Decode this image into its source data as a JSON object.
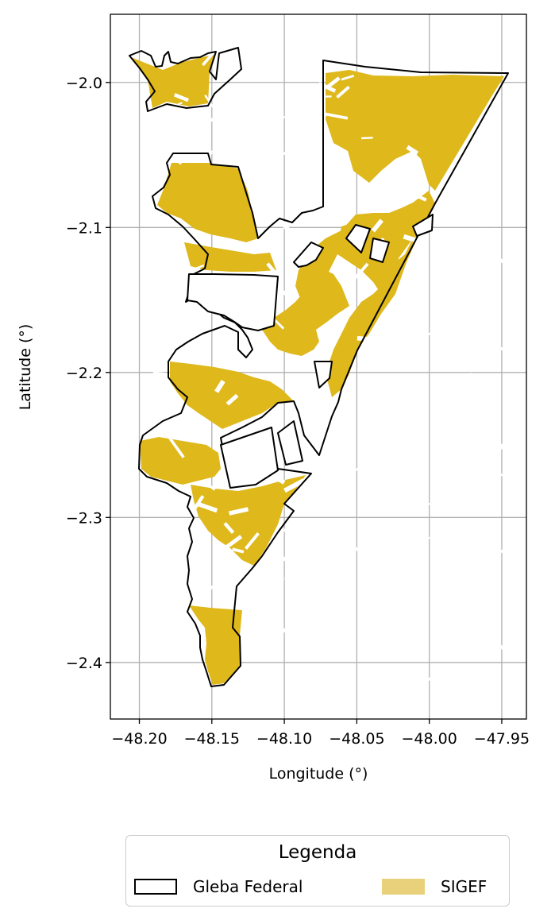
{
  "axes": {
    "xlabel": "Longitude (°)",
    "ylabel": "Latitude (°)",
    "xlim": [
      -48.22,
      -47.933
    ],
    "ylim": [
      -2.439,
      -1.953
    ],
    "xticks": [
      "−48.20",
      "−48.15",
      "−48.10",
      "−48.05",
      "−48.00",
      "−47.95"
    ],
    "xtick_values": [
      -48.2,
      -48.15,
      -48.1,
      -48.05,
      -48.0,
      -47.95
    ],
    "yticks": [
      "−2.0",
      "−2.1",
      "−2.2",
      "−2.3",
      "−2.4"
    ],
    "ytick_values": [
      -2.0,
      -2.1,
      -2.2,
      -2.3,
      -2.4
    ],
    "grid": true
  },
  "legend": {
    "title": "Legenda",
    "placement": "below-center",
    "items": [
      {
        "label": "Gleba Federal",
        "style": "outline"
      },
      {
        "label": "SIGEF",
        "style": "fill"
      }
    ]
  },
  "colors": {
    "sigef": "#dfb81c",
    "sigef_legend": "#e8d17a",
    "outline": "#000000",
    "grid": "#b0b0b0"
  },
  "chart_data": {
    "type": "map",
    "layers": [
      {
        "name": "Gleba Federal",
        "kind": "polygon-outline",
        "color": "#000000"
      },
      {
        "name": "SIGEF",
        "kind": "parcel-fill",
        "color": "#dfb81c"
      }
    ]
  }
}
